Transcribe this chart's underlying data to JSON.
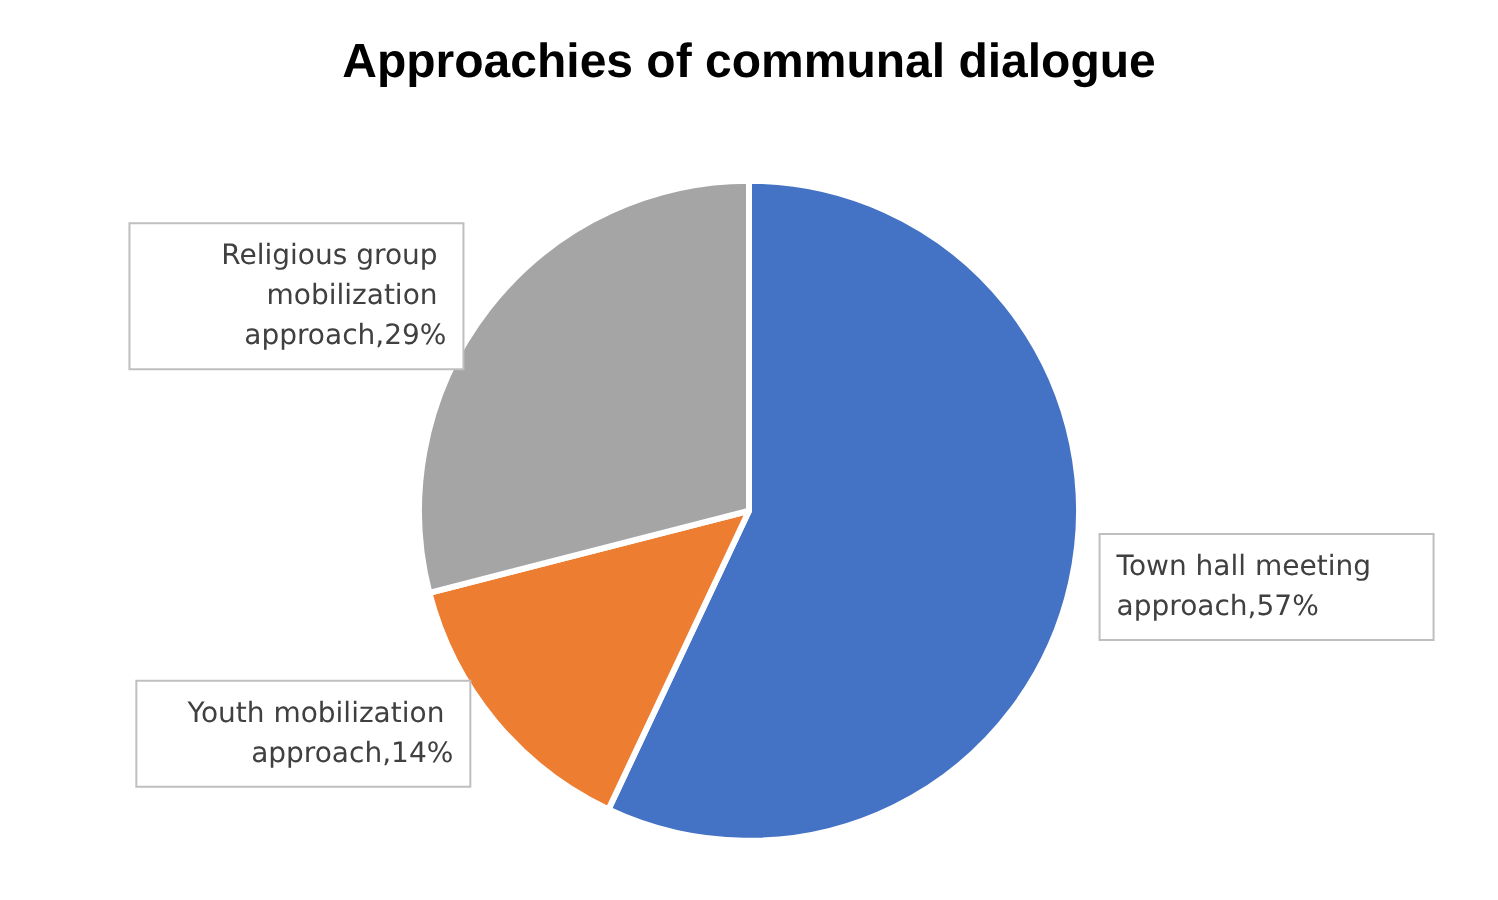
{
  "chart_data": {
    "type": "pie",
    "title": "Approachies of communal dialogue",
    "categories": [
      "Town hall meeting approach",
      "Youth mobilization approach",
      "Religious group mobilization approach"
    ],
    "values": [
      57,
      14,
      29
    ],
    "colors": [
      "#4472c4",
      "#ed7d31",
      "#a5a5a5"
    ],
    "value_labels": [
      ",57%",
      ",14%",
      ",29%"
    ],
    "legend": false
  }
}
